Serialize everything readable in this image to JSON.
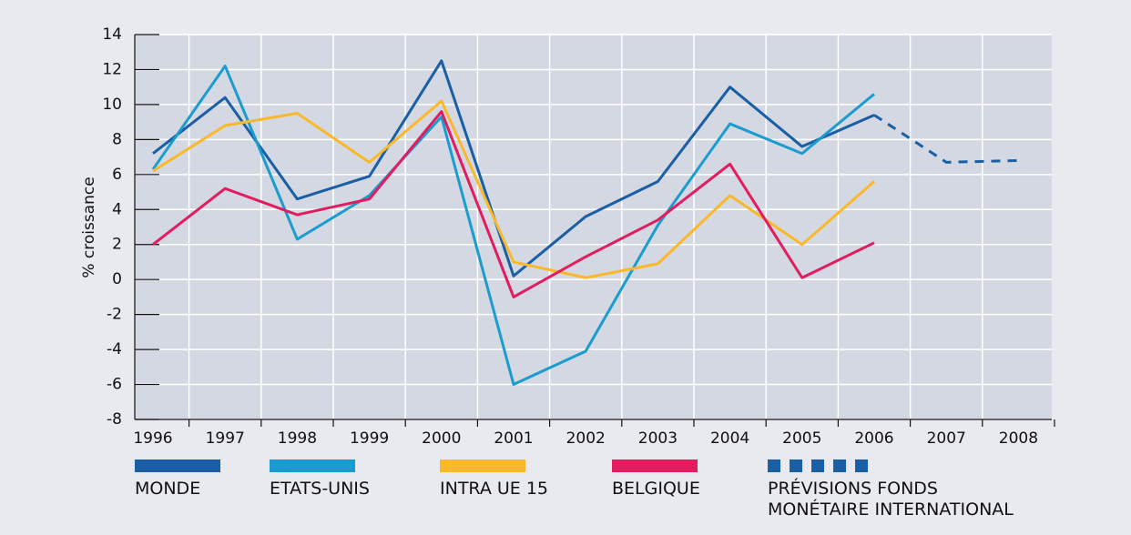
{
  "chart_data": {
    "type": "line",
    "y_label": "% croissance",
    "categories": [
      "1996",
      "1997",
      "1998",
      "1999",
      "2000",
      "2001",
      "2002",
      "2003",
      "2004",
      "2005",
      "2006",
      "2007",
      "2008"
    ],
    "ylim": [
      -8,
      14
    ],
    "yticks": [
      -8,
      -6,
      -4,
      -2,
      0,
      2,
      4,
      6,
      8,
      10,
      12,
      14
    ],
    "grid": true,
    "series": [
      {
        "name": "MONDE",
        "color": "#1a5fa5",
        "values": [
          7.2,
          10.4,
          4.6,
          5.9,
          12.5,
          0.2,
          3.6,
          5.6,
          11.0,
          7.6,
          9.4,
          null,
          null
        ]
      },
      {
        "name": "ETATS-UNIS",
        "color": "#1b9ccf",
        "values": [
          6.3,
          12.2,
          2.3,
          4.8,
          9.3,
          -6.0,
          -4.1,
          3.1,
          8.9,
          7.2,
          10.6,
          null,
          null
        ]
      },
      {
        "name": "INTRA UE 15",
        "color": "#fbb829",
        "values": [
          6.2,
          8.8,
          9.5,
          6.7,
          10.2,
          1.0,
          0.1,
          0.9,
          4.8,
          2.0,
          5.6,
          null,
          null
        ]
      },
      {
        "name": "BELGIQUE",
        "color": "#e21c5f",
        "values": [
          2.0,
          5.2,
          3.7,
          4.6,
          9.6,
          -1.0,
          1.3,
          3.4,
          6.6,
          0.1,
          2.1,
          null,
          null
        ]
      },
      {
        "name": "PRÉVISIONS FONDS MONÉTAIRE INTERNATIONAL",
        "color": "#1a5fa5",
        "dashed": true,
        "values": [
          null,
          null,
          null,
          null,
          null,
          null,
          null,
          null,
          null,
          null,
          9.4,
          6.7,
          6.8
        ]
      }
    ]
  }
}
